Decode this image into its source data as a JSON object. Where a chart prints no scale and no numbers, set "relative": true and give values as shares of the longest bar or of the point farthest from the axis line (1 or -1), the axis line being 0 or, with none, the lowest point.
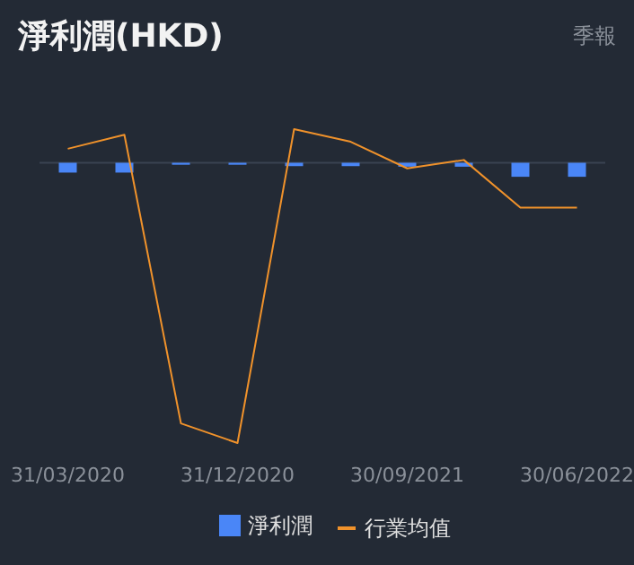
{
  "chart_data": {
    "type": "bar",
    "title": "淨利潤(HKD)",
    "subtitle": "季報",
    "relative": true,
    "legend": "bottom",
    "categories": [
      "31/03/2020",
      null,
      null,
      "31/12/2020",
      null,
      null,
      "30/09/2021",
      null,
      null,
      "30/06/2022"
    ],
    "series": [
      {
        "name": "淨利潤",
        "color": "#4a86f7",
        "values": [
          -0.035,
          -0.035,
          -0.007,
          -0.007,
          -0.012,
          -0.012,
          -0.014,
          -0.014,
          -0.05,
          -0.05
        ]
      },
      {
        "name": "行業均值",
        "type": "line",
        "color": "#f0922b",
        "values": [
          0.05,
          0.1,
          -0.93,
          -1,
          0.12,
          0.075,
          -0.02,
          0.01,
          -0.16,
          -0.16
        ]
      }
    ]
  }
}
